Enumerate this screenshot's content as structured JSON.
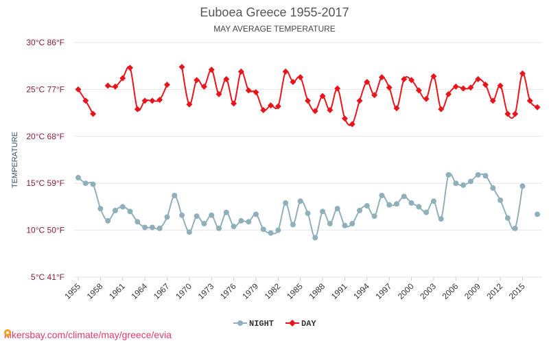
{
  "chart_data": {
    "type": "line",
    "title": "Euboea Greece 1955-2017",
    "subtitle": "MAY AVERAGE TEMPERATURE",
    "ylabel": "TEMPERATURE",
    "xlabel": "",
    "ylim": [
      5,
      30
    ],
    "y_ticks": [
      {
        "value": 30,
        "label": "30°C 86°F"
      },
      {
        "value": 25,
        "label": "25°C 77°F"
      },
      {
        "value": 20,
        "label": "20°C 68°F"
      },
      {
        "value": 15,
        "label": "15°C 59°F"
      },
      {
        "value": 10,
        "label": "10°C 50°F"
      },
      {
        "value": 5,
        "label": "5°C 41°F"
      }
    ],
    "x_tick_labels": [
      "1955",
      "1958",
      "1961",
      "1964",
      "1967",
      "1970",
      "1973",
      "1976",
      "1979",
      "1982",
      "1985",
      "1988",
      "1991",
      "1994",
      "1997",
      "2000",
      "2003",
      "2006",
      "2009",
      "2012",
      "2015"
    ],
    "grid": "horizontal",
    "legend_position": "bottom",
    "x": [
      1955,
      1956,
      1957,
      1958,
      1959,
      1960,
      1961,
      1962,
      1963,
      1964,
      1965,
      1966,
      1967,
      1968,
      1969,
      1970,
      1971,
      1972,
      1973,
      1974,
      1975,
      1976,
      1977,
      1978,
      1979,
      1980,
      1981,
      1982,
      1983,
      1984,
      1985,
      1986,
      1987,
      1988,
      1989,
      1990,
      1991,
      1992,
      1993,
      1994,
      1995,
      1996,
      1997,
      1998,
      1999,
      2000,
      2001,
      2002,
      2003,
      2004,
      2005,
      2006,
      2007,
      2008,
      2009,
      2010,
      2011,
      2012,
      2013,
      2014,
      2015,
      2016,
      2017
    ],
    "series": [
      {
        "name": "NIGHT",
        "color": "#8fb0bb",
        "marker": "circle",
        "values": [
          15.6,
          15.0,
          14.9,
          12.3,
          11.0,
          12.1,
          12.5,
          12.0,
          10.9,
          10.3,
          10.3,
          10.2,
          11.4,
          13.7,
          11.6,
          9.8,
          11.5,
          10.7,
          11.6,
          10.2,
          11.9,
          10.4,
          11.0,
          10.9,
          11.7,
          10.1,
          9.7,
          10.0,
          12.9,
          10.6,
          13.1,
          11.8,
          9.2,
          12.0,
          10.7,
          12.3,
          10.5,
          10.7,
          12.1,
          12.6,
          11.5,
          13.7,
          12.7,
          12.8,
          13.6,
          12.9,
          12.5,
          11.9,
          13.1,
          11.2,
          15.9,
          15.0,
          14.8,
          15.2,
          15.9,
          15.8,
          14.5,
          13.2,
          11.3,
          10.2,
          14.7,
          null,
          11.7
        ]
      },
      {
        "name": "DAY",
        "color": "#e8141b",
        "marker": "diamond",
        "values": [
          25.0,
          23.8,
          22.4,
          null,
          25.4,
          25.3,
          26.2,
          27.3,
          22.9,
          23.8,
          23.8,
          23.9,
          25.5,
          null,
          27.4,
          23.4,
          26.0,
          25.3,
          27.1,
          24.5,
          26.1,
          23.5,
          26.9,
          24.9,
          24.7,
          22.8,
          23.3,
          23.2,
          26.9,
          25.8,
          26.3,
          23.8,
          22.7,
          24.3,
          22.8,
          25.1,
          21.9,
          21.3,
          23.8,
          25.8,
          24.4,
          26.3,
          25.2,
          23.0,
          26.1,
          26.0,
          24.9,
          24.0,
          26.4,
          22.9,
          24.5,
          25.3,
          25.1,
          25.2,
          26.1,
          25.5,
          23.8,
          25.4,
          22.4,
          22.4,
          26.7,
          23.8,
          23.1
        ]
      }
    ]
  },
  "footer": {
    "link_text": "hikersbay.com/climate/may/greece/evia"
  }
}
